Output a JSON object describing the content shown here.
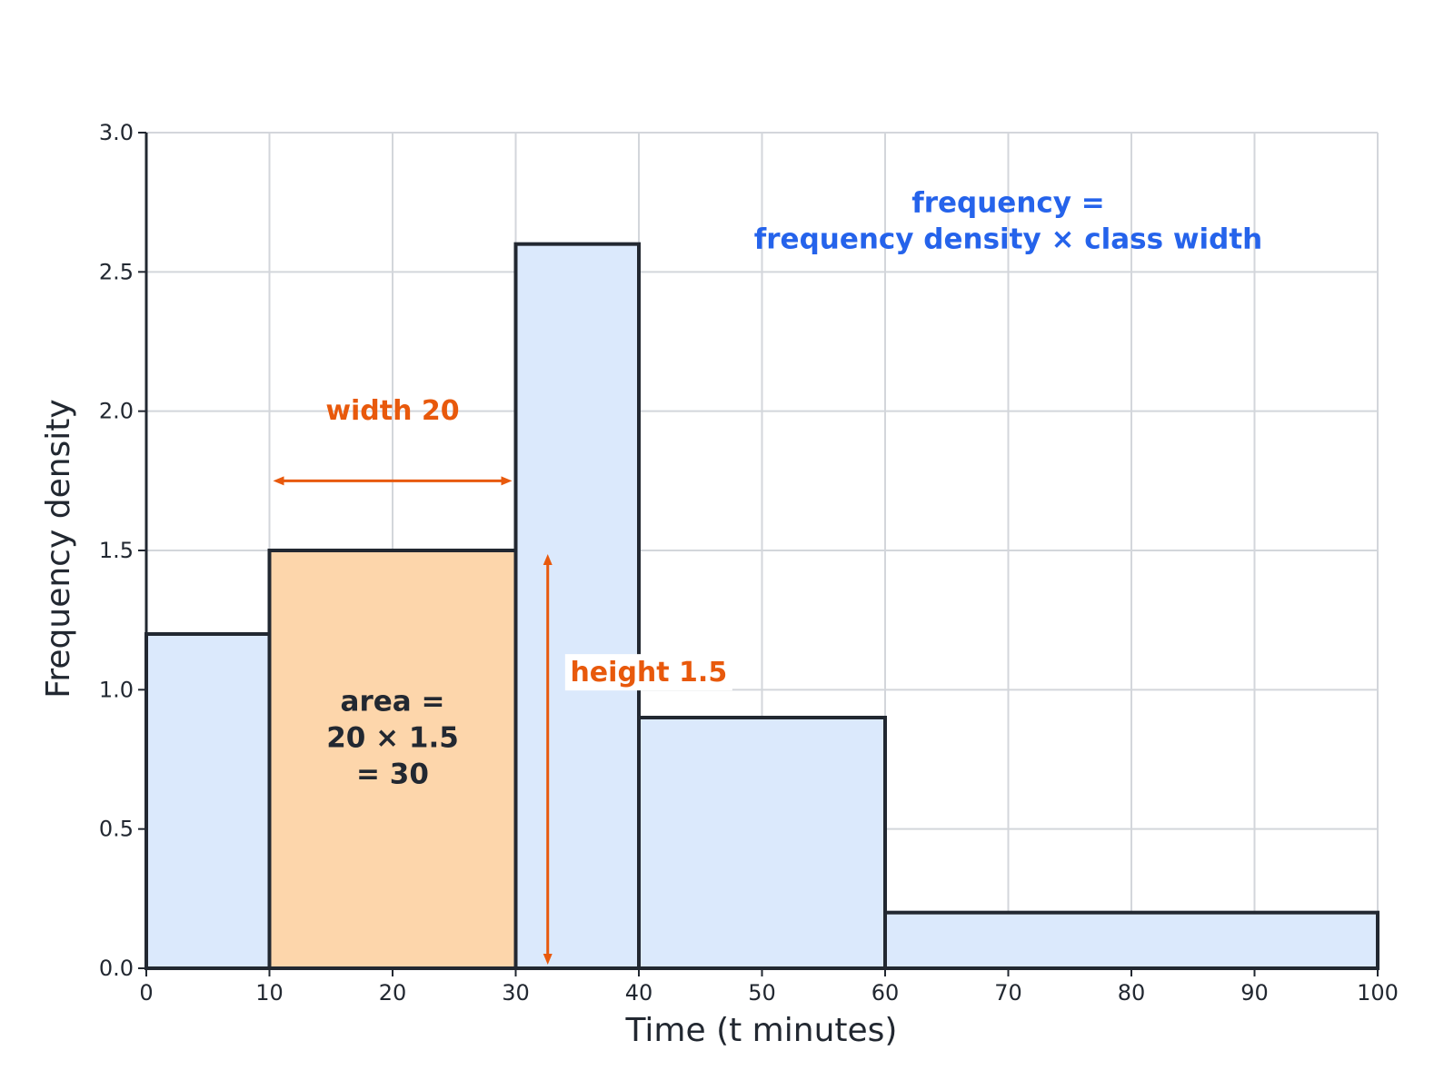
{
  "chart_data": {
    "type": "histogram",
    "title": "",
    "xlabel": "Time (t minutes)",
    "ylabel": "Frequency density",
    "xlim": [
      0,
      100
    ],
    "ylim": [
      0,
      3.0
    ],
    "x_ticks": [
      0,
      10,
      20,
      30,
      40,
      50,
      60,
      70,
      80,
      90,
      100
    ],
    "y_ticks": [
      "0.0",
      "0.5",
      "1.0",
      "1.5",
      "2.0",
      "2.5",
      "3.0"
    ],
    "grid": true,
    "bars": [
      {
        "x_start": 0,
        "x_end": 10,
        "frequency_density": 1.2,
        "highlighted": false
      },
      {
        "x_start": 10,
        "x_end": 30,
        "frequency_density": 1.5,
        "highlighted": true
      },
      {
        "x_start": 30,
        "x_end": 40,
        "frequency_density": 2.6,
        "highlighted": false
      },
      {
        "x_start": 40,
        "x_end": 60,
        "frequency_density": 0.9,
        "highlighted": false
      },
      {
        "x_start": 60,
        "x_end": 100,
        "frequency_density": 0.2,
        "highlighted": false
      }
    ],
    "annotations": {
      "width_label": "width 20",
      "height_label": "height 1.5",
      "area_lines": [
        "area =",
        "20 × 1.5",
        "= 30"
      ],
      "formula_lines": [
        "frequency =",
        "frequency density × class width"
      ]
    },
    "colors": {
      "bar_fill": "#dbe9fc",
      "highlight_fill": "#fdd6ab",
      "bar_edge": "#222831",
      "annotation": "#e8590c",
      "formula": "#2563eb",
      "grid": "#d3d6db"
    }
  }
}
